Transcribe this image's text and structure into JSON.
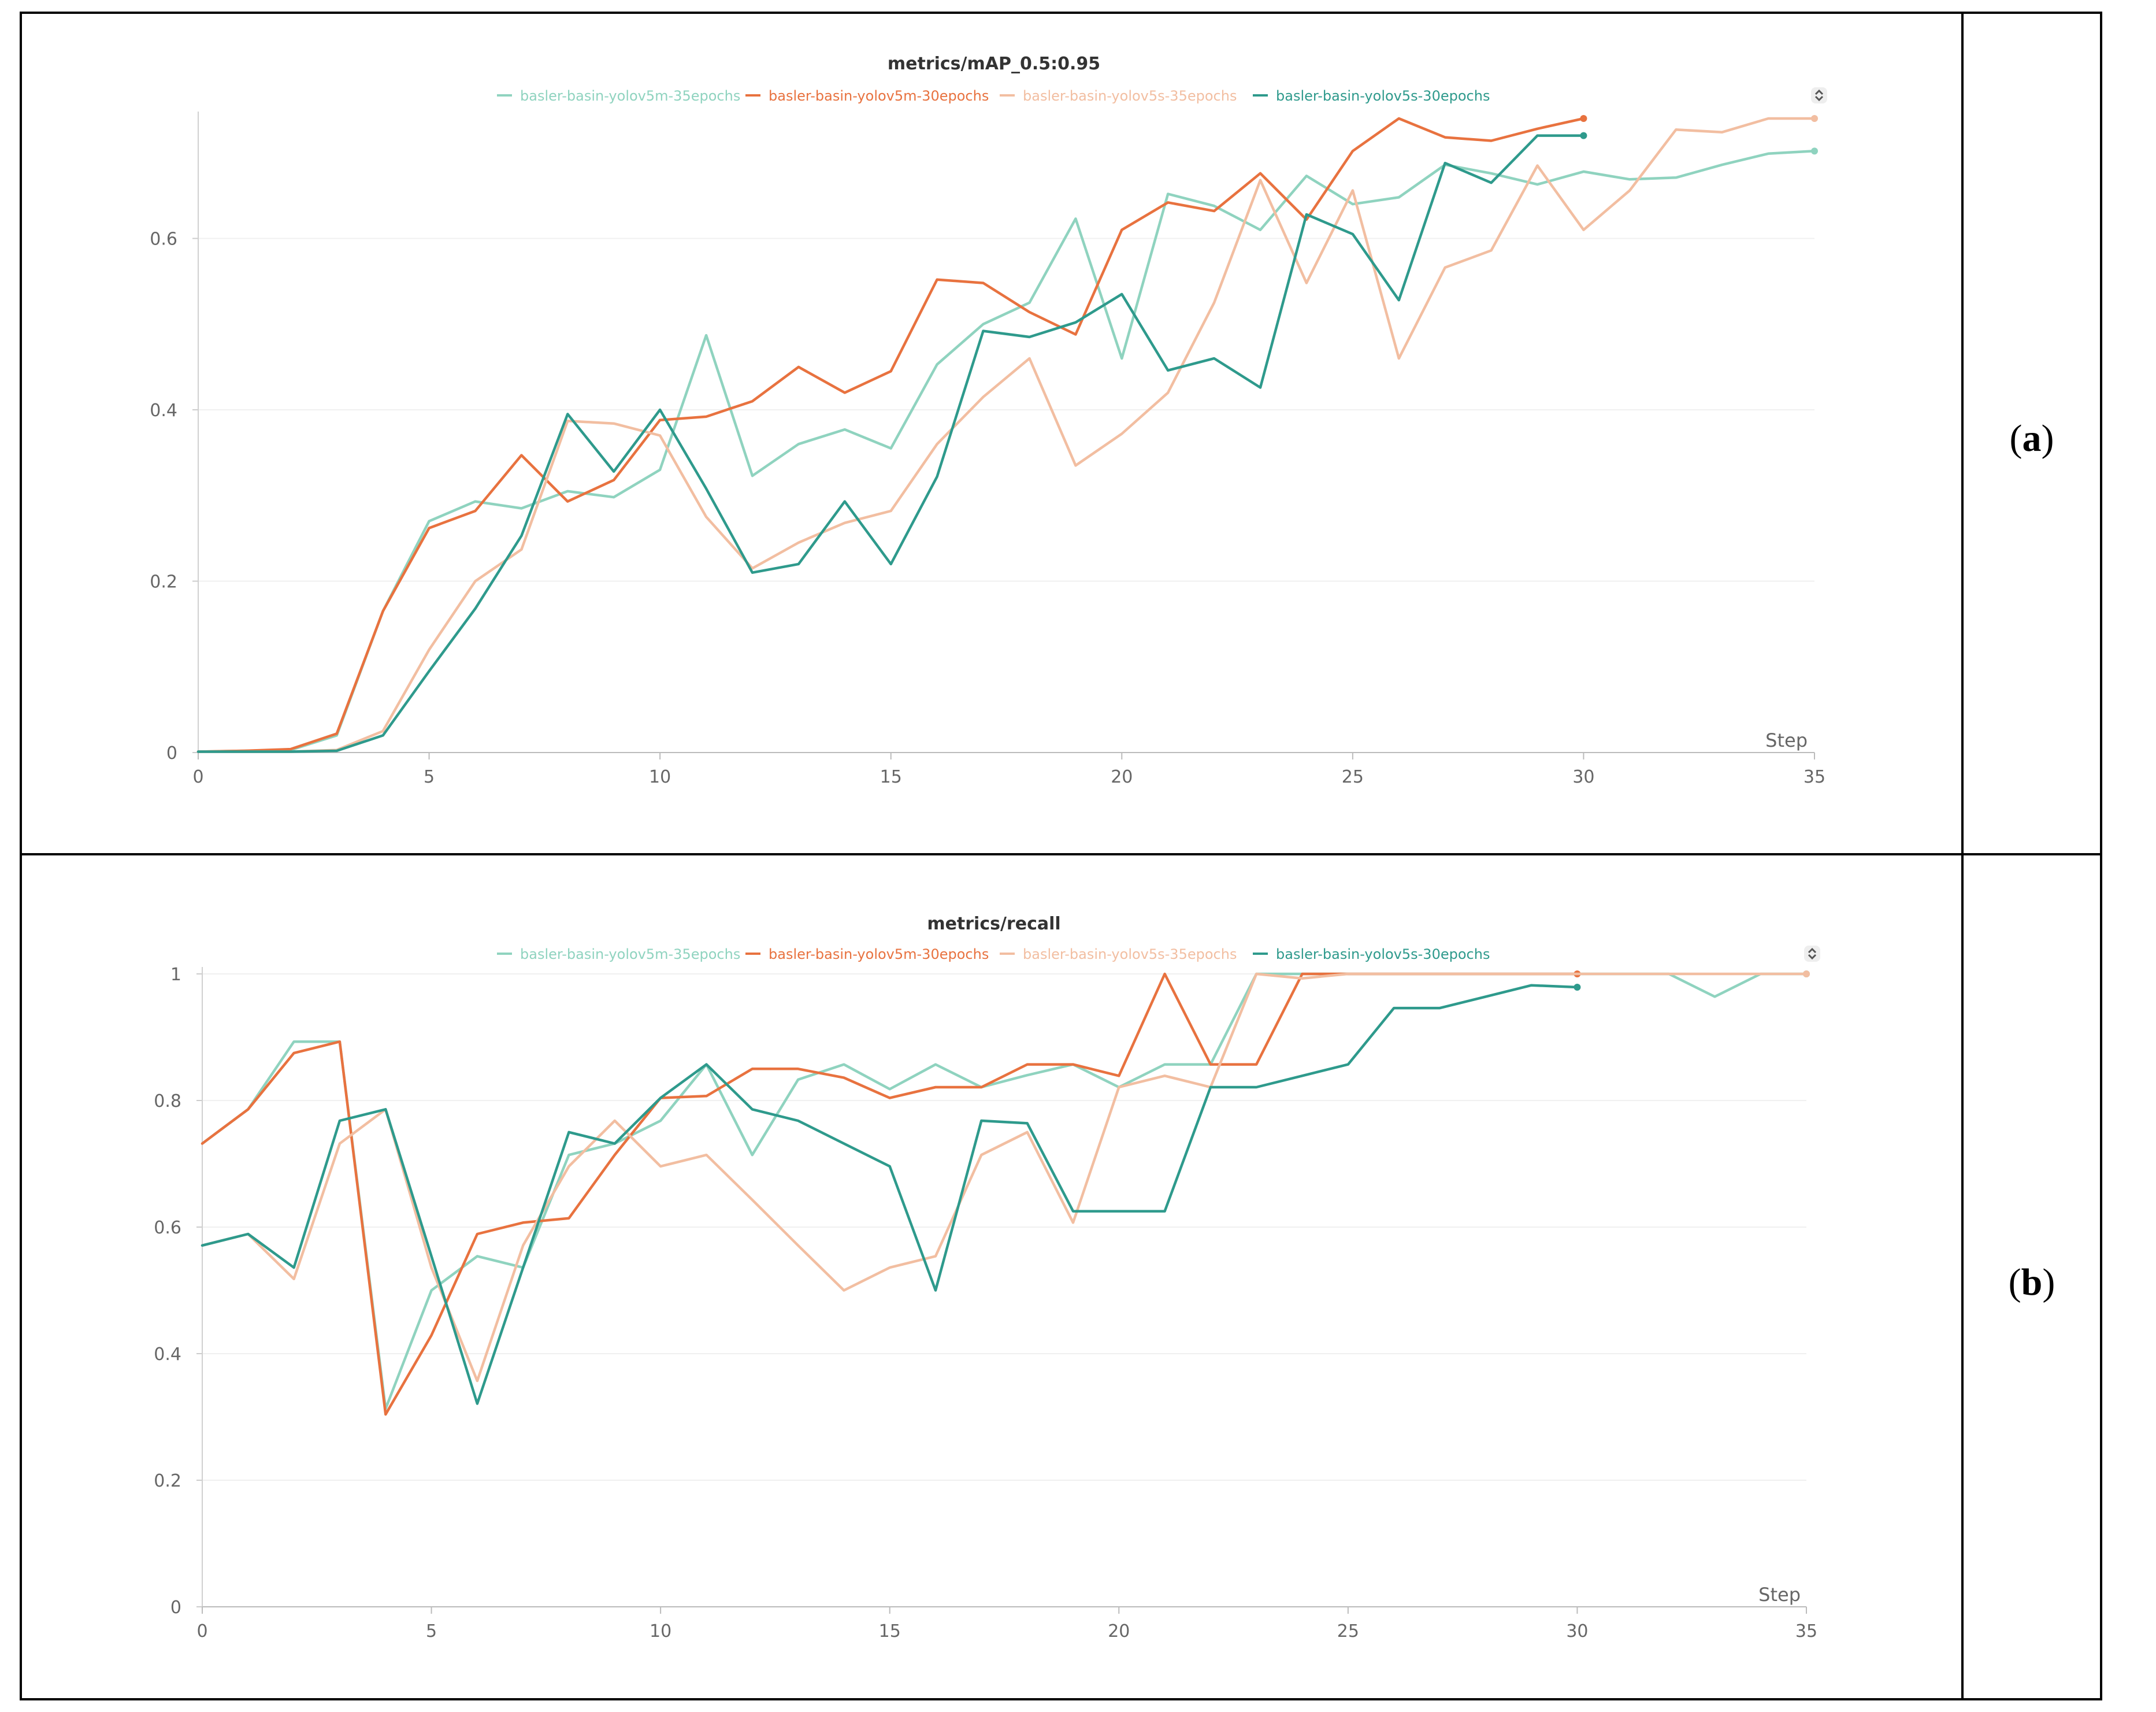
{
  "panels": [
    {
      "label_open": "(",
      "label_letter": "a",
      "label_close": ")"
    },
    {
      "label_open": "(",
      "label_letter": "b",
      "label_close": ")"
    }
  ],
  "colors": {
    "yolov5m_35": "#8fd3bf",
    "yolov5m_30": "#e8723f",
    "yolov5s_35": "#f2bea1",
    "yolov5s_30": "#2e9a8c"
  },
  "chart_data": [
    {
      "type": "line",
      "title": "metrics/mAP_0.5:0.95",
      "xlabel": "Step",
      "ylabel": "",
      "xlim": [
        0,
        35
      ],
      "ylim": [
        0,
        0.74
      ],
      "x_ticks": [
        0,
        5,
        10,
        15,
        20,
        25,
        30,
        35
      ],
      "y_ticks": [
        0,
        0.2,
        0.4,
        0.6
      ],
      "grid": true,
      "legend_position": "top-center",
      "series": [
        {
          "name": "basler-basin-yolov5m-35epochs",
          "color": "#8fd3bf",
          "x": [
            0,
            1,
            2,
            3,
            4,
            5,
            6,
            7,
            8,
            9,
            10,
            11,
            12,
            13,
            14,
            15,
            16,
            17,
            18,
            19,
            20,
            21,
            22,
            23,
            24,
            25,
            26,
            27,
            28,
            29,
            30,
            31,
            32,
            33,
            34,
            35
          ],
          "values": [
            0.001,
            0.002,
            0.003,
            0.02,
            0.165,
            0.27,
            0.293,
            0.285,
            0.305,
            0.298,
            0.33,
            0.487,
            0.323,
            0.36,
            0.377,
            0.355,
            0.453,
            0.5,
            0.525,
            0.623,
            0.46,
            0.652,
            0.638,
            0.61,
            0.673,
            0.64,
            0.648,
            0.686,
            0.676,
            0.663,
            0.678,
            0.669,
            0.671,
            0.686,
            0.699,
            0.702
          ]
        },
        {
          "name": "basler-basin-yolov5m-30epochs",
          "color": "#e8723f",
          "x": [
            0,
            1,
            2,
            3,
            4,
            5,
            6,
            7,
            8,
            9,
            10,
            11,
            12,
            13,
            14,
            15,
            16,
            17,
            18,
            19,
            20,
            21,
            22,
            23,
            24,
            25,
            26,
            27,
            28,
            29,
            30
          ],
          "values": [
            0.001,
            0.002,
            0.004,
            0.022,
            0.165,
            0.262,
            0.282,
            0.347,
            0.293,
            0.318,
            0.388,
            0.392,
            0.41,
            0.45,
            0.42,
            0.445,
            0.552,
            0.548,
            0.514,
            0.488,
            0.61,
            0.642,
            0.632,
            0.676,
            0.622,
            0.702,
            0.74,
            0.718,
            0.714,
            0.728,
            0.74
          ]
        },
        {
          "name": "basler-basin-yolov5s-35epochs",
          "color": "#f2bea1",
          "x": [
            0,
            1,
            2,
            3,
            4,
            5,
            6,
            7,
            8,
            9,
            10,
            11,
            12,
            13,
            14,
            15,
            16,
            17,
            18,
            19,
            20,
            21,
            22,
            23,
            24,
            25,
            26,
            27,
            28,
            29,
            30,
            31,
            32,
            33,
            34,
            35
          ],
          "values": [
            0.001,
            0.001,
            0.001,
            0.003,
            0.025,
            0.12,
            0.2,
            0.237,
            0.387,
            0.384,
            0.37,
            0.275,
            0.215,
            0.245,
            0.268,
            0.282,
            0.36,
            0.415,
            0.46,
            0.335,
            0.372,
            0.42,
            0.525,
            0.668,
            0.548,
            0.656,
            0.46,
            0.566,
            0.586,
            0.685,
            0.61,
            0.656,
            0.727,
            0.724,
            0.74,
            0.74
          ]
        },
        {
          "name": "basler-basin-yolov5s-30epochs",
          "color": "#2e9a8c",
          "x": [
            0,
            1,
            2,
            3,
            4,
            5,
            6,
            7,
            8,
            9,
            10,
            11,
            12,
            13,
            14,
            15,
            16,
            17,
            18,
            19,
            20,
            21,
            22,
            23,
            24,
            25,
            26,
            27,
            28,
            29,
            30
          ],
          "values": [
            0.001,
            0.001,
            0.001,
            0.002,
            0.02,
            0.095,
            0.168,
            0.253,
            0.395,
            0.328,
            0.4,
            0.308,
            0.21,
            0.22,
            0.293,
            0.22,
            0.322,
            0.492,
            0.485,
            0.502,
            0.535,
            0.446,
            0.46,
            0.426,
            0.628,
            0.605,
            0.528,
            0.688,
            0.665,
            0.72,
            0.72
          ]
        }
      ]
    },
    {
      "type": "line",
      "title": "metrics/recall",
      "xlabel": "Step",
      "ylabel": "",
      "xlim": [
        0,
        35
      ],
      "ylim": [
        0,
        1
      ],
      "x_ticks": [
        0,
        5,
        10,
        15,
        20,
        25,
        30,
        35
      ],
      "y_ticks": [
        0,
        0.2,
        0.4,
        0.6,
        0.8,
        1
      ],
      "grid": true,
      "legend_position": "top-center",
      "series": [
        {
          "name": "basler-basin-yolov5m-35epochs",
          "color": "#8fd3bf",
          "x": [
            0,
            1,
            2,
            3,
            4,
            5,
            6,
            7,
            8,
            9,
            10,
            11,
            12,
            13,
            14,
            15,
            16,
            17,
            18,
            19,
            20,
            21,
            22,
            23,
            24,
            25,
            26,
            27,
            28,
            29,
            30,
            31,
            32,
            33,
            34,
            35
          ],
          "values": [
            0.732,
            0.786,
            0.893,
            0.893,
            0.313,
            0.5,
            0.554,
            0.536,
            0.714,
            0.732,
            0.768,
            0.857,
            0.714,
            0.833,
            0.857,
            0.818,
            0.857,
            0.821,
            0.84,
            0.857,
            0.821,
            0.857,
            0.857,
            1,
            1,
            1,
            1,
            1,
            1,
            1,
            1,
            1,
            1,
            0.964,
            1,
            1
          ]
        },
        {
          "name": "basler-basin-yolov5m-30epochs",
          "color": "#e8723f",
          "x": [
            0,
            1,
            2,
            3,
            4,
            5,
            6,
            7,
            8,
            9,
            10,
            11,
            12,
            13,
            14,
            15,
            16,
            17,
            18,
            19,
            20,
            21,
            22,
            23,
            24,
            25,
            26,
            27,
            28,
            29,
            30
          ],
          "values": [
            0.732,
            0.786,
            0.875,
            0.893,
            0.304,
            0.429,
            0.589,
            0.607,
            0.614,
            0.714,
            0.804,
            0.807,
            0.85,
            0.85,
            0.836,
            0.804,
            0.821,
            0.821,
            0.857,
            0.857,
            0.839,
            1,
            0.857,
            0.857,
            1,
            1,
            1,
            1,
            1,
            1,
            1
          ]
        },
        {
          "name": "basler-basin-yolov5s-35epochs",
          "color": "#f2bea1",
          "x": [
            0,
            1,
            2,
            3,
            4,
            5,
            6,
            7,
            8,
            9,
            10,
            11,
            12,
            13,
            14,
            15,
            16,
            17,
            18,
            19,
            20,
            21,
            22,
            23,
            24,
            25,
            26,
            27,
            28,
            29,
            30,
            31,
            32,
            33,
            34,
            35
          ],
          "values": [
            0.571,
            0.589,
            0.518,
            0.732,
            0.786,
            0.536,
            0.357,
            0.571,
            0.696,
            0.768,
            0.696,
            0.714,
            0.643,
            0.571,
            0.5,
            0.536,
            0.554,
            0.714,
            0.75,
            0.607,
            0.821,
            0.839,
            0.821,
            1,
            0.993,
            1,
            1,
            1,
            1,
            1,
            1,
            1,
            1,
            1,
            1,
            1
          ]
        },
        {
          "name": "basler-basin-yolov5s-30epochs",
          "color": "#2e9a8c",
          "x": [
            0,
            1,
            2,
            3,
            4,
            5,
            6,
            7,
            8,
            9,
            10,
            11,
            12,
            13,
            14,
            15,
            16,
            17,
            18,
            19,
            20,
            21,
            22,
            23,
            24,
            25,
            26,
            27,
            28,
            29,
            30
          ],
          "values": [
            0.571,
            0.589,
            0.536,
            0.768,
            0.786,
            0.554,
            0.321,
            0.536,
            0.75,
            0.732,
            0.804,
            0.857,
            0.786,
            0.768,
            0.732,
            0.696,
            0.5,
            0.768,
            0.764,
            0.625,
            0.625,
            0.625,
            0.821,
            0.821,
            0.839,
            0.857,
            0.946,
            0.946,
            0.964,
            0.982,
            0.979
          ]
        }
      ]
    }
  ]
}
